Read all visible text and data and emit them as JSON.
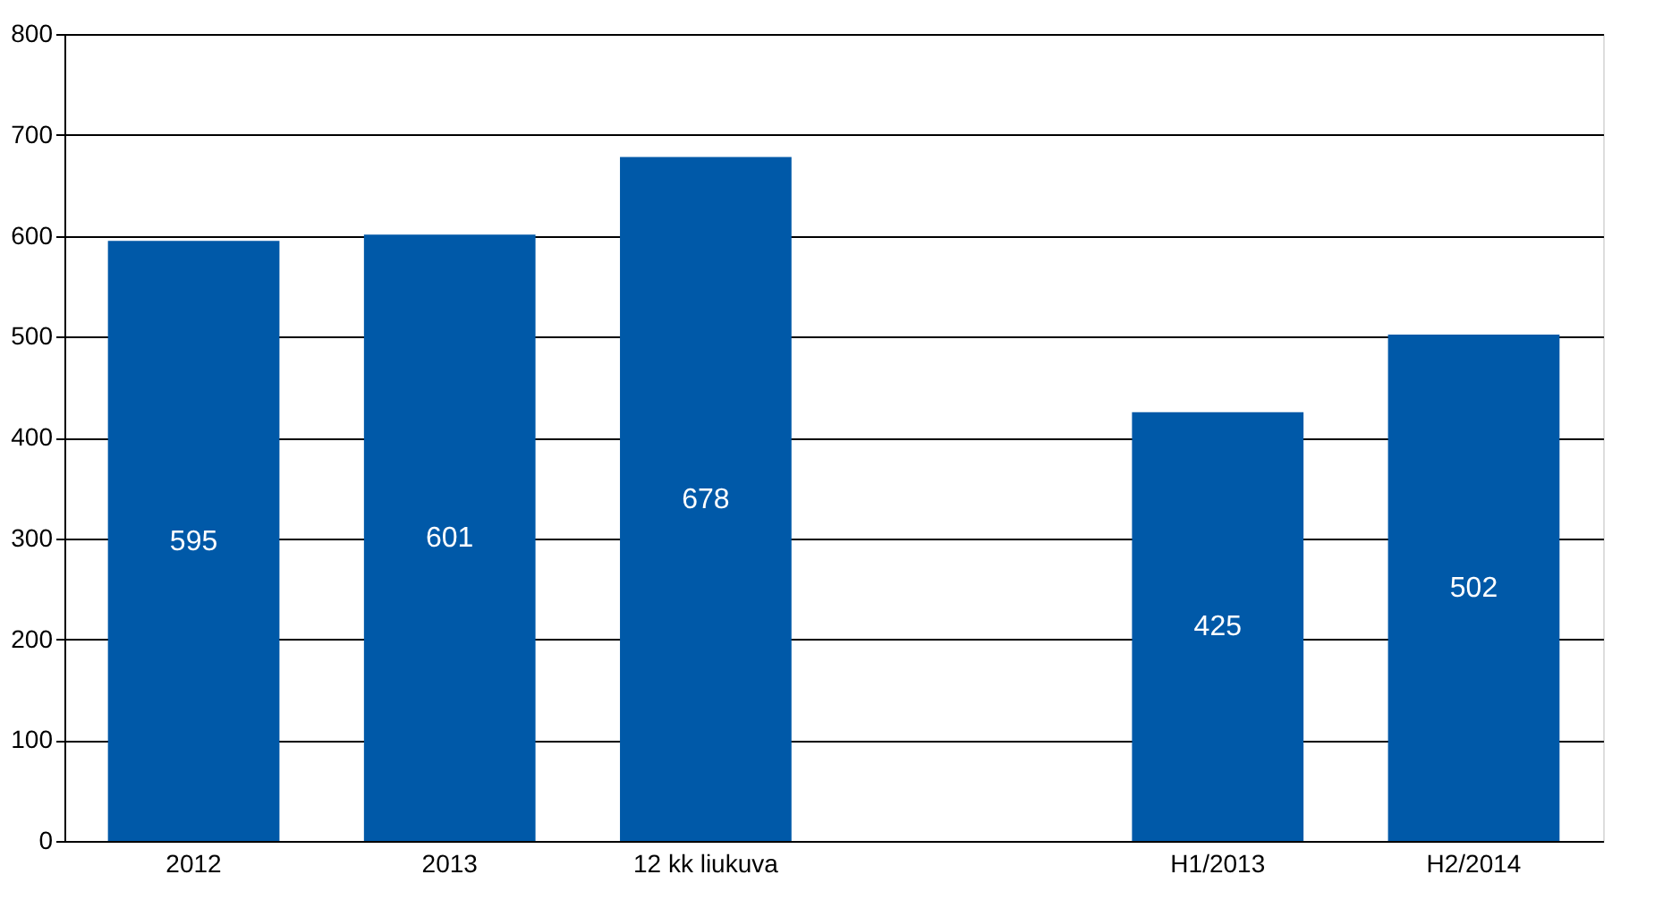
{
  "chart_data": {
    "type": "bar",
    "categories": [
      "2012",
      "2013",
      "12 kk liukuva",
      null,
      "H1/2013",
      "H2/2014"
    ],
    "values": [
      595,
      601,
      678,
      null,
      425,
      502
    ],
    "color": "#0059a8",
    "ylim": [
      0,
      800
    ],
    "yticks": [
      0,
      100,
      200,
      300,
      400,
      500,
      600,
      700,
      800
    ],
    "grid": "y",
    "data_labels": true
  }
}
